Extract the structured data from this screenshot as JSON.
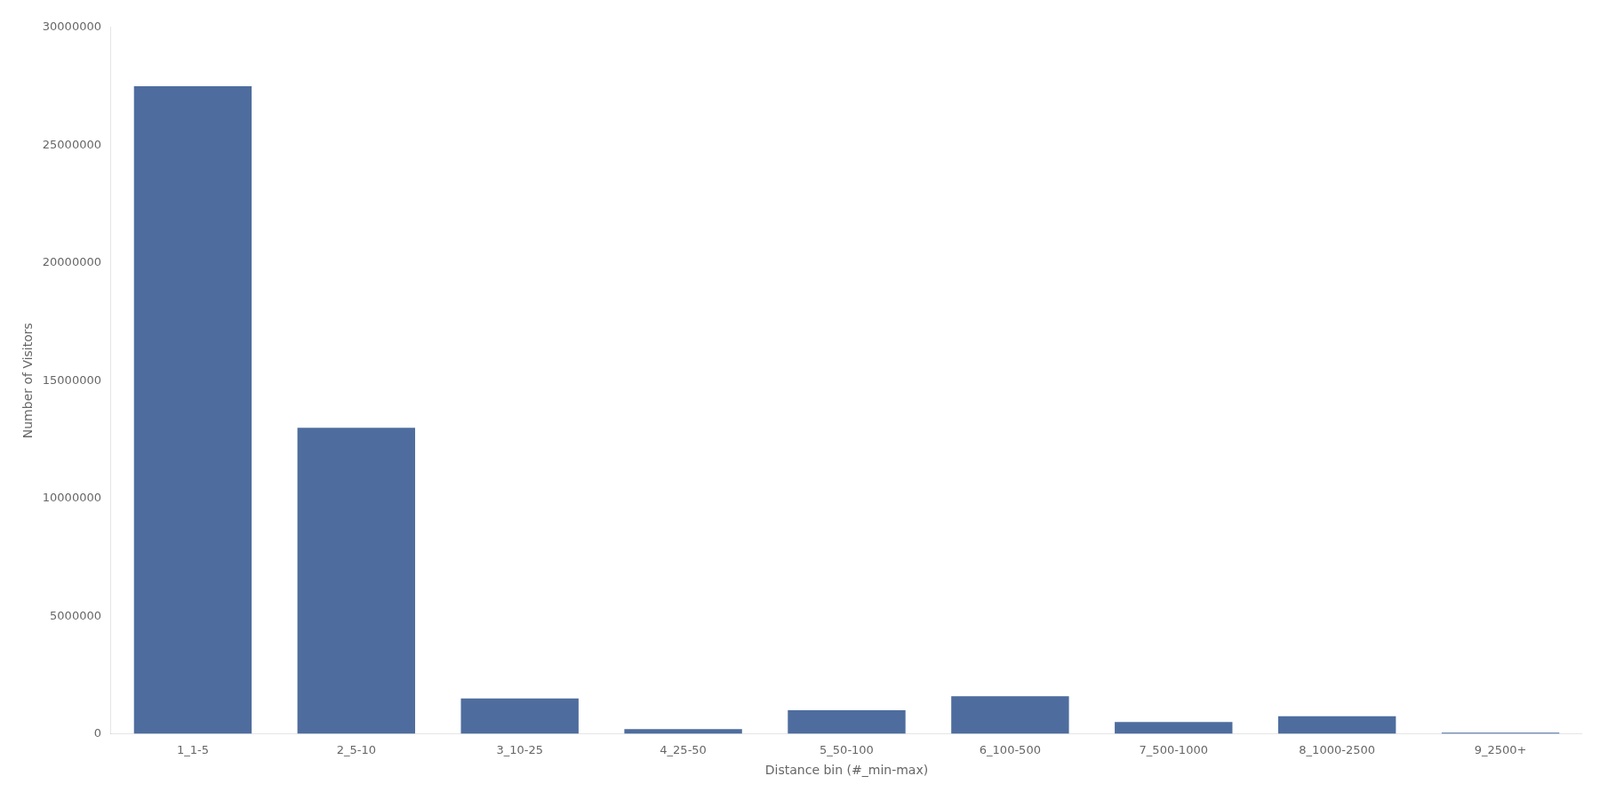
{
  "chart_data": {
    "type": "bar",
    "xlabel": "Distance bin (#_min-max)",
    "ylabel": "Number of Visitors",
    "categories": [
      "1_1-5",
      "2_5-10",
      "3_10-25",
      "4_25-50",
      "5_50-100",
      "6_100-500",
      "7_500-1000",
      "8_1000-2500",
      "9_2500+"
    ],
    "values": [
      27500000,
      13000000,
      1500000,
      200000,
      1000000,
      1600000,
      500000,
      750000,
      50000
    ],
    "color": "#4e6d9e",
    "ylim": [
      0,
      30000000
    ],
    "yticks": [
      0,
      5000000,
      10000000,
      15000000,
      20000000,
      25000000,
      30000000
    ],
    "grid": false
  }
}
